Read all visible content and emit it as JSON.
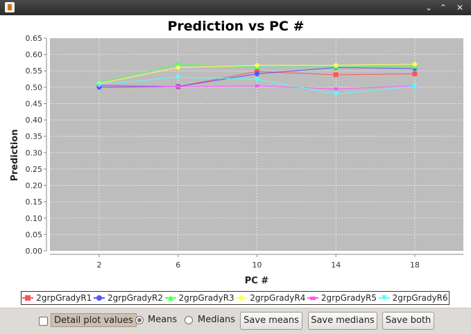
{
  "window": {
    "icon": "java-cup-icon",
    "controls": {
      "minimize": "⌄",
      "maximize": "⌃",
      "close": "✕"
    }
  },
  "chart_data": {
    "type": "line",
    "title": "Prediction vs PC #",
    "xlabel": "PC #",
    "ylabel": "Prediction",
    "x": [
      2,
      6,
      10,
      14,
      18
    ],
    "ylim": [
      0,
      0.65
    ],
    "yticks": [
      0.0,
      0.05,
      0.1,
      0.15,
      0.2,
      0.25,
      0.3,
      0.35,
      0.4,
      0.45,
      0.5,
      0.55,
      0.6,
      0.65
    ],
    "grid": true,
    "legend_position": "bottom",
    "series": [
      {
        "name": "2grpGradyR1",
        "color": "#ff5555",
        "marker": "square",
        "values": [
          0.505,
          0.502,
          0.548,
          0.538,
          0.541
        ]
      },
      {
        "name": "2grpGradyR2",
        "color": "#5555ff",
        "marker": "circle",
        "values": [
          0.5,
          0.502,
          0.541,
          0.56,
          0.557
        ]
      },
      {
        "name": "2grpGradyR3",
        "color": "#55ff55",
        "marker": "triangle-up",
        "values": [
          0.514,
          0.57,
          0.561,
          0.562,
          0.563
        ]
      },
      {
        "name": "2grpGradyR4",
        "color": "#ffff55",
        "marker": "diamond",
        "values": [
          0.511,
          0.56,
          0.567,
          0.567,
          0.57
        ]
      },
      {
        "name": "2grpGradyR5",
        "color": "#ff55ff",
        "marker": "square-small",
        "values": [
          0.507,
          0.502,
          0.504,
          0.495,
          0.504
        ]
      },
      {
        "name": "2grpGradyR6",
        "color": "#55ffff",
        "marker": "triangle-down",
        "values": [
          0.508,
          0.531,
          0.524,
          0.479,
          0.503
        ]
      }
    ]
  },
  "controls": {
    "detail_label": "Detail plot values",
    "detail_checked": false,
    "means_label": "Means",
    "medians_label": "Medians",
    "selected": "Means",
    "save_means": "Save means",
    "save_medians": "Save medians",
    "save_both": "Save both"
  }
}
